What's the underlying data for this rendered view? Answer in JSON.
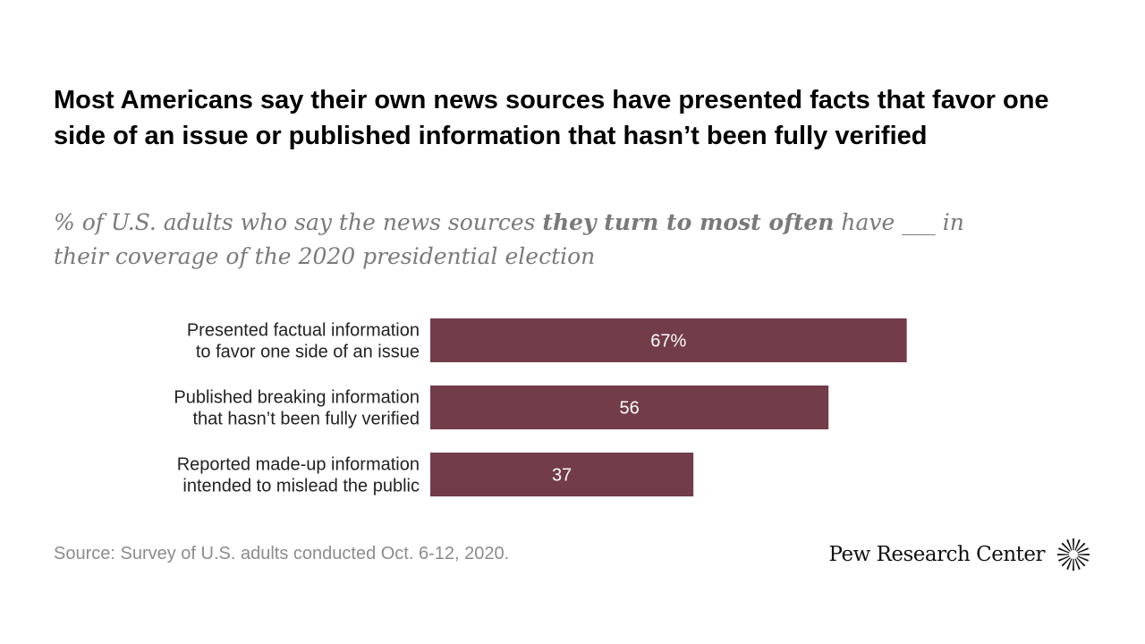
{
  "title": "Most Americans say their own news sources have presented facts that favor one side of an issue or published information that hasn’t been fully verified",
  "subtitle": {
    "before": "% of U.S. adults who say the news sources ",
    "emphasis": "they turn to most often",
    "after": " have ___ in their coverage of the 2020 presidential election"
  },
  "chart_data": {
    "type": "bar",
    "orientation": "horizontal",
    "categories": [
      [
        "Presented factual information",
        "to favor one side of an issue"
      ],
      [
        "Published breaking information",
        "that hasn’t been fully verified"
      ],
      [
        "Reported made-up information",
        "intended to mislead the public"
      ]
    ],
    "values": [
      67,
      56,
      37
    ],
    "value_labels": [
      "67%",
      "56",
      "37"
    ],
    "xlim": [
      0,
      100
    ],
    "bar_color": "#723c49",
    "grid": false
  },
  "source": "Source: Survey of U.S. adults conducted Oct. 6-12, 2020.",
  "logo": {
    "text": "Pew Research Center",
    "icon": "pew-sunburst-icon"
  }
}
